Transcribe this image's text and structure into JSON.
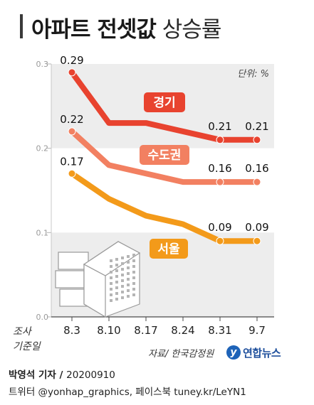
{
  "title": {
    "bold": "아파트 전셋값",
    "light": "상승률"
  },
  "chart_data": {
    "type": "line",
    "unit_label": "단위: %",
    "x_axis_title": [
      "조사",
      "기준일"
    ],
    "categories": [
      "8.3",
      "8.10",
      "8.17",
      "8.24",
      "8.31",
      "9.7"
    ],
    "ylim": [
      0.0,
      0.3
    ],
    "yticks": [
      "0.0",
      "0.1",
      "0.2",
      "0.3"
    ],
    "series": [
      {
        "name": "경기",
        "color": "#e8432f",
        "values": [
          0.29,
          0.23,
          0.23,
          0.22,
          0.21,
          0.21
        ],
        "labels": [
          "0.29",
          "",
          "",
          "",
          "0.21",
          "0.21"
        ]
      },
      {
        "name": "수도권",
        "color": "#f28061",
        "values": [
          0.22,
          0.18,
          0.17,
          0.16,
          0.16,
          0.16
        ],
        "labels": [
          "0.22",
          "",
          "",
          "",
          "0.16",
          "0.16"
        ]
      },
      {
        "name": "서울",
        "color": "#f39a1a",
        "values": [
          0.17,
          0.14,
          0.12,
          0.11,
          0.09,
          0.09
        ],
        "labels": [
          "0.17",
          "",
          "",
          "",
          "0.09",
          "0.09"
        ]
      }
    ],
    "source": "자료/ 한국감정원"
  },
  "footer": {
    "byline": "박영석 기자 / ",
    "date": "20200910",
    "contact": "트위터 @yonhap_graphics, 페이스북 tuney.kr/LeYN1"
  },
  "logo": {
    "mark": "y",
    "text": "연합뉴스"
  }
}
